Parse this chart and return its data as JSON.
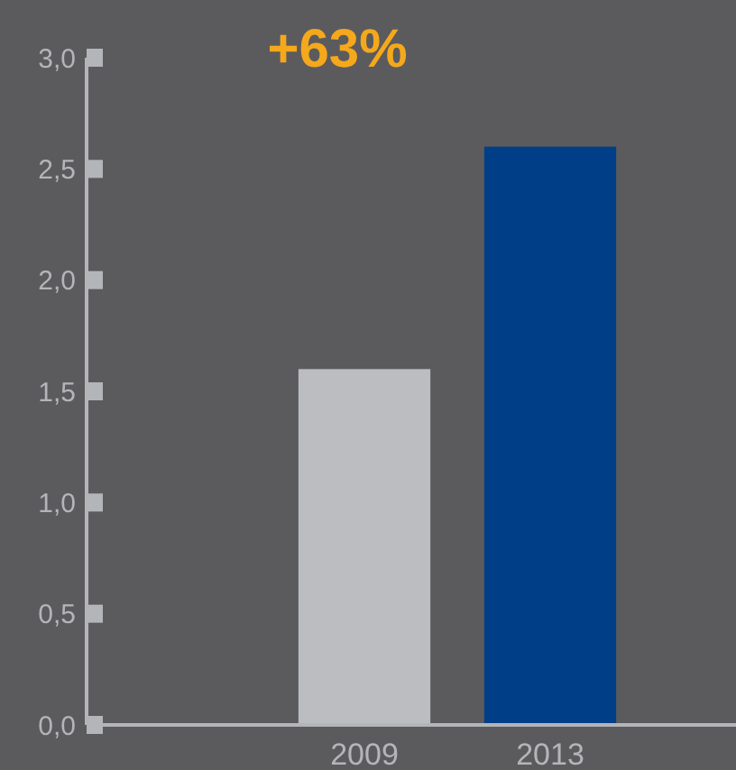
{
  "chart_data": {
    "type": "bar",
    "categories": [
      "2009",
      "2013"
    ],
    "values": [
      1.6,
      2.6
    ],
    "colors": [
      "#bcbdc0",
      "#003f87"
    ],
    "ylim": [
      0,
      3
    ],
    "yticks": [
      {
        "value": 0,
        "label": "0,0"
      },
      {
        "value": 0.5,
        "label": "0,5"
      },
      {
        "value": 1,
        "label": "1,0"
      },
      {
        "value": 1.5,
        "label": "1,5"
      },
      {
        "value": 2,
        "label": "2,0"
      },
      {
        "value": 2.5,
        "label": "2,5"
      },
      {
        "value": 3,
        "label": "3,0"
      }
    ],
    "annotations": [
      "+63%"
    ]
  }
}
